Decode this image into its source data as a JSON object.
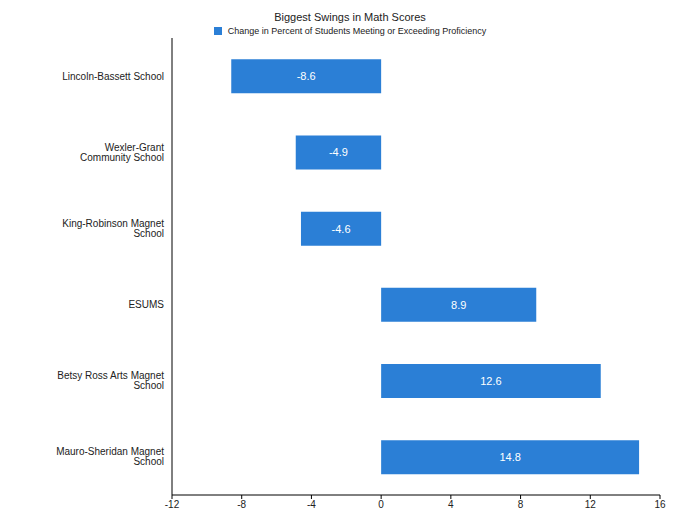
{
  "chart_data": {
    "type": "bar",
    "title": "Biggest Swings in Math Scores",
    "orientation": "horizontal",
    "categories": [
      "Lincoln-Bassett School",
      "Wexler-Grant Community School",
      "King-Robinson Magnet School",
      "ESUMS",
      "Betsy Ross Arts Magnet School",
      "Mauro-Sheridan Magnet School"
    ],
    "series": [
      {
        "name": "Change in Percent of Students Meeting or Exceeding Proficiency",
        "color": "#2b7fd6",
        "values": [
          -8.6,
          -4.9,
          -4.6,
          8.9,
          12.6,
          14.8
        ]
      }
    ],
    "xlim": [
      -12,
      16
    ],
    "xticks": [
      -12,
      -8,
      -4,
      0,
      4,
      8,
      12,
      16
    ],
    "grid": false,
    "data_labels": true,
    "legend": "top"
  }
}
